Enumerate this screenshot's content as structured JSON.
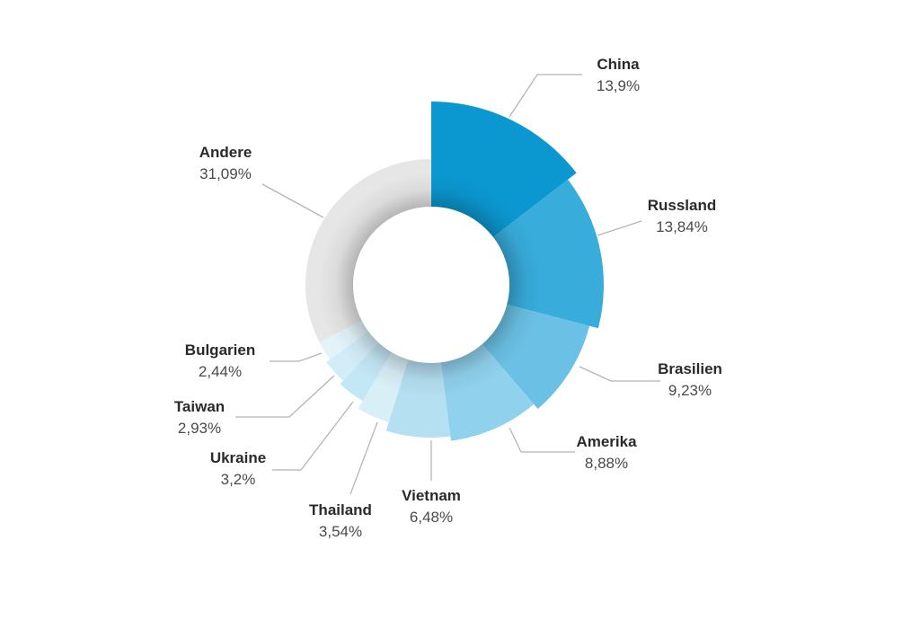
{
  "chart_data": {
    "type": "pie",
    "variant": "variable-radius donut",
    "categories": [
      "China",
      "Russland",
      "Brasilien",
      "Amerika",
      "Vietnam",
      "Thailand",
      "Ukraine",
      "Taiwan",
      "Bulgarien",
      "Andere"
    ],
    "values": [
      13.9,
      13.84,
      9.23,
      8.88,
      6.48,
      3.54,
      3.2,
      2.93,
      2.44,
      31.09
    ],
    "value_labels": [
      "13,9%",
      "13,84%",
      "9,23%",
      "8,88%",
      "6,48%",
      "3,54%",
      "3,2%",
      "2,93%",
      "2,44%",
      "31,09%"
    ],
    "colors": [
      "#0b98d1",
      "#38addc",
      "#6bc1e5",
      "#90d1ed",
      "#b5e0f2",
      "#d8eff8",
      "#c4e7f5",
      "#d3edf8",
      "#e3f3fa",
      "#e6e6e6"
    ],
    "legend": "none",
    "start": "top, clockwise"
  }
}
